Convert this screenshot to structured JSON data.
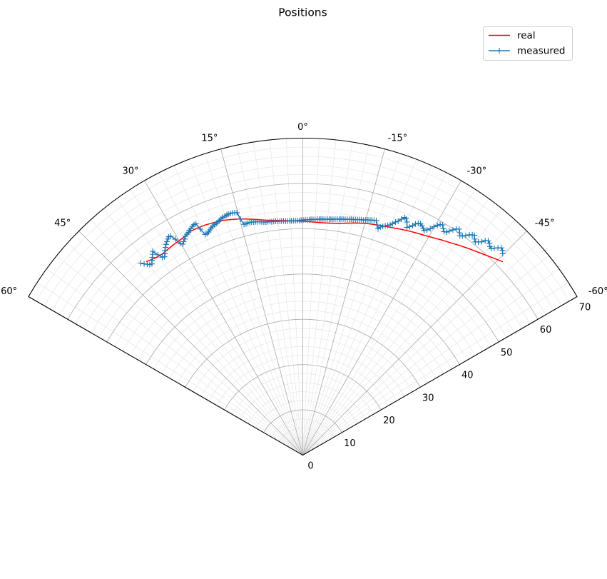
{
  "chart_data": {
    "type": "polar-line",
    "title": "Positions",
    "theta_range_deg": [
      -60,
      60
    ],
    "theta_zero": "top",
    "theta_direction": "counterclockwise",
    "r_range": [
      0,
      70
    ],
    "theta_ticks": [
      60,
      45,
      30,
      15,
      0,
      -15,
      -30,
      -45,
      -60
    ],
    "theta_tick_labels": [
      "60°",
      "45°",
      "30°",
      "15°",
      "0°",
      "-15°",
      "-30°",
      "-45°",
      "-60°"
    ],
    "r_ticks": [
      0,
      10,
      20,
      30,
      40,
      50,
      60,
      70
    ],
    "r_tick_labels": [
      "0",
      "10",
      "20",
      "30",
      "40",
      "50",
      "60",
      "70"
    ],
    "grid": "major and minor",
    "legend": {
      "placement": "top-right",
      "entries": [
        "real",
        "measured"
      ]
    },
    "colors": {
      "real": "#ff0000",
      "measured": "#1f77b4",
      "major_grid": "#b0b0b0",
      "minor_grid": "#e6e6e6"
    },
    "series": [
      {
        "name": "real",
        "marker": "none",
        "theta": [
          39.0,
          37.0,
          35.0,
          33.0,
          31.0,
          29.0,
          27.0,
          25.0,
          23.0,
          21.0,
          19.0,
          17.0,
          15.0,
          13.0,
          11.0,
          9.0,
          7.0,
          5.0,
          3.0,
          1.0,
          -1.0,
          -3.0,
          -5.0,
          -7.0,
          -9.0,
          -11.0,
          -13.0,
          -15.0,
          -17.0,
          -19.0,
          -21.0,
          -23.0,
          -25.0,
          -27.0,
          -29.0,
          -31.0,
          -33.0,
          -35.0,
          -37.0,
          -39.0,
          -41.0,
          -43.0,
          -45.0,
          -46.0
        ],
        "r": [
          55.0,
          54.4,
          54.2,
          54.4,
          54.6,
          54.8,
          55.3,
          55.3,
          55.2,
          55.0,
          54.8,
          54.4,
          54.0,
          53.5,
          53.0,
          52.5,
          52.2,
          52.0,
          51.8,
          51.7,
          51.6,
          51.5,
          51.5,
          51.6,
          51.8,
          52.2,
          52.6,
          53.0,
          53.3,
          53.6,
          53.9,
          54.3,
          54.7,
          55.1,
          55.5,
          56.0,
          56.6,
          57.2,
          57.9,
          58.6,
          59.3,
          60.1,
          61.0,
          61.5
        ]
      },
      {
        "name": "measured",
        "marker": "plus",
        "theta": [
          40.2,
          39.7,
          39.2,
          38.8,
          38.3,
          37.8,
          37.3,
          36.8,
          36.4,
          35.9,
          35.4,
          34.9,
          34.4,
          34.0,
          33.5,
          33.0,
          32.5,
          32.0,
          31.6,
          31.1,
          30.6,
          30.1,
          29.6,
          29.2,
          28.7,
          28.2,
          27.7,
          27.2,
          26.8,
          26.3,
          25.8,
          25.3,
          24.8,
          24.4,
          23.9,
          23.4,
          22.9,
          22.4,
          22.0,
          21.5,
          21.0,
          20.5,
          20.0,
          19.6,
          19.1,
          18.6,
          18.1,
          17.6,
          17.2,
          16.7,
          16.2,
          15.7,
          15.2,
          14.8,
          14.3,
          13.8,
          13.3,
          12.8,
          12.4,
          11.9,
          11.4,
          10.9,
          10.4,
          10.0,
          9.5,
          9.0,
          8.5,
          8.0,
          7.6,
          7.1,
          6.6,
          6.1,
          5.6,
          5.2,
          4.7,
          4.2,
          3.7,
          3.2,
          2.8,
          2.3,
          1.8,
          1.3,
          0.8,
          0.4,
          -0.1,
          -0.6,
          -1.1,
          -1.6,
          -2.0,
          -2.5,
          -3.0,
          -3.5,
          -4.0,
          -4.4,
          -4.9,
          -5.4,
          -5.9,
          -6.4,
          -6.8,
          -7.3,
          -7.8,
          -8.3,
          -8.8,
          -9.2,
          -9.7,
          -10.2,
          -10.7,
          -11.2,
          -11.6,
          -12.1,
          -12.6,
          -13.1,
          -13.6,
          -14.0,
          -14.5,
          -15.0,
          -15.5,
          -16.0,
          -16.4,
          -16.9,
          -17.4,
          -17.9,
          -18.4,
          -18.8,
          -19.3,
          -19.8,
          -20.3,
          -20.8,
          -21.2,
          -21.7,
          -22.2,
          -22.7,
          -23.2,
          -23.6,
          -24.1,
          -24.6,
          -25.1,
          -25.6,
          -26.0,
          -26.5,
          -27.0,
          -27.5,
          -28.0,
          -28.4,
          -28.9,
          -29.4,
          -29.9,
          -30.4,
          -30.8,
          -31.3,
          -31.8,
          -32.3,
          -32.8,
          -33.2,
          -33.7,
          -34.2,
          -34.7,
          -35.2,
          -35.6,
          -36.1,
          -36.6,
          -37.1,
          -37.6,
          -38.0,
          -38.5,
          -39.0,
          -39.5,
          -40.0,
          -40.4,
          -40.9,
          -41.4,
          -41.9,
          -42.4,
          -42.8,
          -43.3,
          -43.8,
          -44.3,
          -44.8,
          -45.2,
          -45.7
        ],
        "r": [
          55.5,
          54.9,
          54.4,
          54.0,
          53.8,
          54.4,
          54.9,
          55.4,
          55.9,
          54.6,
          53.6,
          53.4,
          53.9,
          54.5,
          55.0,
          55.5,
          55.9,
          56.3,
          56.6,
          56.5,
          55.4,
          54.0,
          53.6,
          54.0,
          54.4,
          54.9,
          55.1,
          55.3,
          55.6,
          55.8,
          56.1,
          56.3,
          56.3,
          54.8,
          53.3,
          53.3,
          53.5,
          53.8,
          54.1,
          54.3,
          54.5,
          54.6,
          54.8,
          55.0,
          55.2,
          55.4,
          55.5,
          55.6,
          55.7,
          55.7,
          55.7,
          55.6,
          55.5,
          53.9,
          52.6,
          52.6,
          52.7,
          52.7,
          52.7,
          52.6,
          52.6,
          52.5,
          52.4,
          52.3,
          52.2,
          52.1,
          52.1,
          52.1,
          52.0,
          52.0,
          52.0,
          51.9,
          51.9,
          51.9,
          51.9,
          51.8,
          51.8,
          51.8,
          51.8,
          51.8,
          51.8,
          51.8,
          51.8,
          51.9,
          51.9,
          52.0,
          52.0,
          52.0,
          52.1,
          52.1,
          52.1,
          52.2,
          52.2,
          52.3,
          52.3,
          52.3,
          52.4,
          52.4,
          52.5,
          52.5,
          52.6,
          52.7,
          52.7,
          52.8,
          52.9,
          52.9,
          53.0,
          53.1,
          53.2,
          53.2,
          53.3,
          53.4,
          53.5,
          53.6,
          53.6,
          53.8,
          53.9,
          54.0,
          54.1,
          54.2,
          54.3,
          53.4,
          52.7,
          53.2,
          53.5,
          53.8,
          54.1,
          54.4,
          54.8,
          55.4,
          55.8,
          56.5,
          57.1,
          57.0,
          56.4,
          55.3,
          55.7,
          56.2,
          56.8,
          57.2,
          57.3,
          57.1,
          56.7,
          56.4,
          56.8,
          57.4,
          58.2,
          58.8,
          59.3,
          59.5,
          58.9,
          58.4,
          58.6,
          59.1,
          59.8,
          60.4,
          60.7,
          60.1,
          59.6,
          59.9,
          60.4,
          61.0,
          61.4,
          61.6,
          61.0,
          60.6,
          61.0,
          61.5,
          62.2,
          62.6,
          62.4,
          61.9,
          61.8,
          62.3,
          62.9,
          63.4,
          63.2,
          62.7
        ]
      }
    ]
  }
}
